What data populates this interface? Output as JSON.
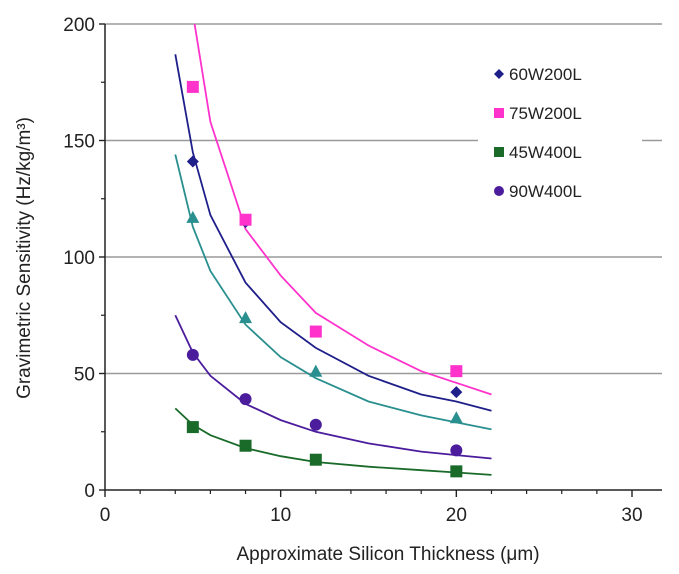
{
  "chart_data": {
    "type": "scatter",
    "xlabel": "Approximate Silicon Thickness (μm)",
    "ylabel": "Gravimetric Sensitivity (Hz/kg/m³)",
    "xlim": [
      0,
      30
    ],
    "ylim": [
      0,
      200
    ],
    "x_ticks": [
      0,
      10,
      20,
      30
    ],
    "y_ticks": [
      0,
      50,
      100,
      150,
      200
    ],
    "grid": "horizontal lines at 50, 100, 150, 200",
    "legend_position": "right",
    "series": [
      {
        "name": "60W200L",
        "marker": "diamond",
        "color": "#1f1f8a",
        "points": [
          [
            5,
            141
          ],
          [
            8,
            115
          ],
          [
            12,
            68
          ],
          [
            20,
            42
          ]
        ],
        "fit_curve": [
          [
            4,
            187
          ],
          [
            5,
            145
          ],
          [
            6,
            118
          ],
          [
            8,
            89
          ],
          [
            10,
            72
          ],
          [
            12,
            61
          ],
          [
            15,
            49
          ],
          [
            18,
            41
          ],
          [
            20,
            38
          ],
          [
            22,
            34
          ]
        ]
      },
      {
        "name": "75W200L",
        "marker": "square",
        "color": "#ff33cc",
        "points": [
          [
            5,
            173
          ],
          [
            8,
            116
          ],
          [
            12,
            68
          ],
          [
            20,
            51
          ]
        ],
        "fit_curve": [
          [
            5.1,
            200
          ],
          [
            6,
            158
          ],
          [
            7,
            135
          ],
          [
            8,
            112
          ],
          [
            10,
            92
          ],
          [
            12,
            76
          ],
          [
            15,
            62
          ],
          [
            18,
            51
          ],
          [
            20,
            46
          ],
          [
            22,
            41
          ]
        ]
      },
      {
        "name": "45W400L",
        "marker": "square",
        "color": "#1a6b2a",
        "points": [
          [
            5,
            27
          ],
          [
            8,
            19
          ],
          [
            12,
            13
          ],
          [
            20,
            8
          ]
        ],
        "fit_curve": [
          [
            4,
            35
          ],
          [
            5,
            28
          ],
          [
            6,
            23.5
          ],
          [
            8,
            18
          ],
          [
            10,
            14.5
          ],
          [
            12,
            12
          ],
          [
            15,
            10
          ],
          [
            18,
            8.5
          ],
          [
            20,
            7.5
          ],
          [
            22,
            6.5
          ]
        ]
      },
      {
        "name": "90W400L",
        "marker": "circle",
        "color": "#4b1c9c",
        "points": [
          [
            5,
            58
          ],
          [
            8,
            39
          ],
          [
            12,
            28
          ],
          [
            20,
            17
          ]
        ],
        "fit_curve": [
          [
            4,
            75
          ],
          [
            5,
            59
          ],
          [
            6,
            49
          ],
          [
            8,
            37
          ],
          [
            10,
            30
          ],
          [
            12,
            25
          ],
          [
            15,
            20
          ],
          [
            18,
            16.5
          ],
          [
            20,
            15
          ],
          [
            22,
            13.5
          ]
        ]
      },
      {
        "marker": "triangle",
        "color": "#2a8f8f",
        "points": [
          [
            5,
            117
          ],
          [
            8,
            74
          ],
          [
            12,
            51
          ],
          [
            20,
            31
          ]
        ],
        "fit_curve": [
          [
            4,
            144
          ],
          [
            5,
            113
          ],
          [
            6,
            94
          ],
          [
            8,
            71
          ],
          [
            10,
            57
          ],
          [
            12,
            48
          ],
          [
            15,
            38
          ],
          [
            18,
            32
          ],
          [
            20,
            29
          ],
          [
            22,
            26
          ]
        ]
      }
    ]
  }
}
